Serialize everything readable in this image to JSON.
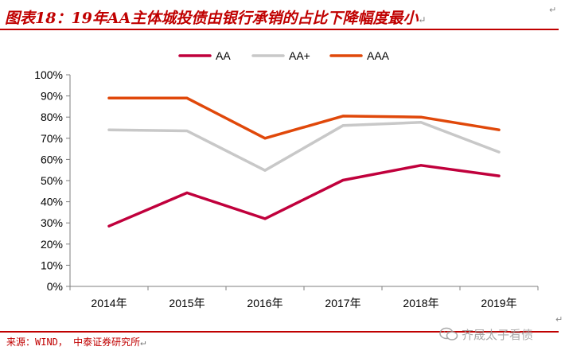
{
  "figure": {
    "title": "图表18：19年AA主体城投债由银行承销的占比下降幅度最小",
    "title_end_mark": "↵",
    "top_right_mark": "↵",
    "bottom_right_mark": "↵",
    "title_color": "#c00000"
  },
  "source": {
    "text": "来源：WIND， 中泰证券研究所",
    "end_mark": "↵"
  },
  "watermark": {
    "text": "齐晟太子看债",
    "icon": "wechat-icon"
  },
  "chart_data": {
    "type": "line",
    "x": [
      "2014年",
      "2015年",
      "2016年",
      "2017年",
      "2018年",
      "2019年"
    ],
    "series": [
      {
        "name": "AA",
        "color": "#c0003c",
        "values": [
          28.5,
          44.2,
          32.0,
          50.2,
          57.2,
          52.2
        ]
      },
      {
        "name": "AA+",
        "color": "#c8c8c8",
        "values": [
          74.0,
          73.5,
          54.8,
          76.0,
          77.5,
          63.5
        ]
      },
      {
        "name": "AAA",
        "color": "#e0480a",
        "values": [
          89.0,
          89.0,
          70.0,
          80.5,
          80.0,
          74.0
        ]
      }
    ],
    "ylim": [
      0,
      100
    ],
    "yticks": [
      "0%",
      "10%",
      "20%",
      "30%",
      "40%",
      "50%",
      "60%",
      "70%",
      "80%",
      "90%",
      "100%"
    ],
    "grid": false,
    "legend_position": "top"
  }
}
